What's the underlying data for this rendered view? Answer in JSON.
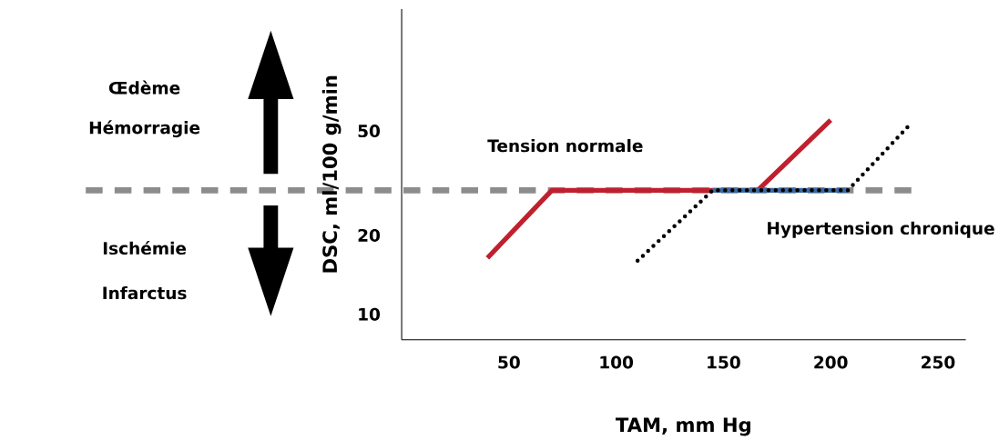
{
  "chart_data": {
    "type": "line",
    "xlabel": "TAM, mm Hg",
    "ylabel": "DSC, ml/100 g/min",
    "log": "y",
    "xlim": [
      0,
      263
    ],
    "ylim": [
      8,
      146
    ],
    "xticks": [
      50,
      100,
      150,
      200,
      250
    ],
    "yticks": [
      10,
      20,
      50
    ],
    "series": [
      {
        "name": "Tension normale",
        "color": "#c0202e",
        "line_style": "solid",
        "x": [
          40,
          70,
          166,
          200
        ],
        "values": [
          16.4,
          29.7,
          29.7,
          55
        ]
      },
      {
        "color": "#3b6aa0",
        "line_style": "solid",
        "x": [
          145,
          208
        ],
        "values": [
          29.7,
          29.7
        ]
      },
      {
        "name": "Hypertension chronique",
        "color": "#000000",
        "line_style": "dotted",
        "x": [
          110,
          145,
          208,
          238
        ],
        "values": [
          16.0,
          29.7,
          29.7,
          54
        ]
      }
    ],
    "ref_lines": [
      {
        "axis": "y",
        "value": 29.7,
        "color": "#8c8c8c",
        "line_style": "dashed"
      }
    ],
    "annotations": [
      "Œdème",
      "Hémorragie",
      "Ischémie",
      "Infarctus"
    ]
  }
}
